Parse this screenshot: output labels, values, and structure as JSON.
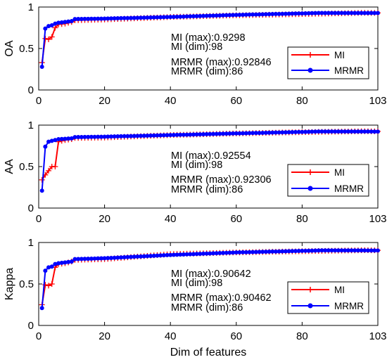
{
  "figure": {
    "xlabel": "Dim of features"
  },
  "chart_data": [
    {
      "type": "line",
      "ylabel": "OA",
      "xlim": [
        0,
        103
      ],
      "ylim": [
        0,
        1
      ],
      "xticks": [
        "0",
        "20",
        "40",
        "60",
        "80",
        "103"
      ],
      "yticks": [
        "0",
        "0.5",
        "1"
      ],
      "legend_placement": "lower-right",
      "annotations": [
        "MI (max):0.9298",
        "MI (dim):98",
        "MRMR (max):0.92846",
        "MRMR (dim):86"
      ],
      "series": [
        {
          "name": "MI",
          "color": "#ff0000",
          "marker": "plus",
          "knots": [
            [
              1,
              0.33
            ],
            [
              2,
              0.62
            ],
            [
              3,
              0.61
            ],
            [
              4,
              0.64
            ],
            [
              5,
              0.75
            ],
            [
              6,
              0.79
            ],
            [
              8,
              0.8
            ],
            [
              10,
              0.82
            ],
            [
              11,
              0.84
            ],
            [
              20,
              0.85
            ],
            [
              40,
              0.88
            ],
            [
              60,
              0.9
            ],
            [
              80,
              0.915
            ],
            [
              98,
              0.9298
            ],
            [
              103,
              0.929
            ]
          ]
        },
        {
          "name": "MRMR",
          "color": "#0000ff",
          "marker": "circle",
          "knots": [
            [
              1,
              0.28
            ],
            [
              2,
              0.74
            ],
            [
              3,
              0.77
            ],
            [
              4,
              0.78
            ],
            [
              5,
              0.8
            ],
            [
              6,
              0.81
            ],
            [
              10,
              0.83
            ],
            [
              11,
              0.855
            ],
            [
              20,
              0.86
            ],
            [
              40,
              0.88
            ],
            [
              60,
              0.905
            ],
            [
              86,
              0.92846
            ],
            [
              103,
              0.928
            ]
          ]
        }
      ]
    },
    {
      "type": "line",
      "ylabel": "AA",
      "xlim": [
        0,
        103
      ],
      "ylim": [
        0,
        1
      ],
      "xticks": [
        "0",
        "20",
        "40",
        "60",
        "80",
        "103"
      ],
      "yticks": [
        "0",
        "0.5",
        "1"
      ],
      "legend_placement": "lower-right",
      "annotations": [
        "MI (max):0.92554",
        "MI (dim):98",
        "MRMR (max):0.92306",
        "MRMR (dim):86"
      ],
      "series": [
        {
          "name": "MI",
          "color": "#ff0000",
          "marker": "plus",
          "knots": [
            [
              1,
              0.34
            ],
            [
              2,
              0.4
            ],
            [
              3,
              0.45
            ],
            [
              4,
              0.5
            ],
            [
              5,
              0.5
            ],
            [
              6,
              0.8
            ],
            [
              8,
              0.82
            ],
            [
              10,
              0.83
            ],
            [
              11,
              0.845
            ],
            [
              20,
              0.85
            ],
            [
              40,
              0.88
            ],
            [
              60,
              0.9
            ],
            [
              80,
              0.915
            ],
            [
              98,
              0.92554
            ],
            [
              103,
              0.925
            ]
          ]
        },
        {
          "name": "MRMR",
          "color": "#0000ff",
          "marker": "circle",
          "knots": [
            [
              1,
              0.21
            ],
            [
              2,
              0.74
            ],
            [
              3,
              0.8
            ],
            [
              4,
              0.81
            ],
            [
              5,
              0.82
            ],
            [
              6,
              0.83
            ],
            [
              10,
              0.84
            ],
            [
              11,
              0.855
            ],
            [
              20,
              0.86
            ],
            [
              40,
              0.88
            ],
            [
              60,
              0.9
            ],
            [
              86,
              0.92306
            ],
            [
              103,
              0.922
            ]
          ]
        }
      ]
    },
    {
      "type": "line",
      "ylabel": "Kappa",
      "xlim": [
        0,
        103
      ],
      "ylim": [
        0,
        1
      ],
      "xticks": [
        "0",
        "20",
        "40",
        "60",
        "80",
        "103"
      ],
      "yticks": [
        "0",
        "0.5",
        "1"
      ],
      "legend_placement": "lower-right",
      "annotations": [
        "MI (max):0.90642",
        "MI (dim):98",
        "MRMR (max):0.90462",
        "MRMR (dim):86"
      ],
      "series": [
        {
          "name": "MI",
          "color": "#ff0000",
          "marker": "plus",
          "knots": [
            [
              1,
              0.25
            ],
            [
              2,
              0.49
            ],
            [
              3,
              0.48
            ],
            [
              4,
              0.5
            ],
            [
              5,
              0.7
            ],
            [
              6,
              0.74
            ],
            [
              8,
              0.75
            ],
            [
              10,
              0.77
            ],
            [
              11,
              0.79
            ],
            [
              20,
              0.8
            ],
            [
              40,
              0.86
            ],
            [
              60,
              0.88
            ],
            [
              80,
              0.895
            ],
            [
              98,
              0.90642
            ],
            [
              103,
              0.906
            ]
          ]
        },
        {
          "name": "MRMR",
          "color": "#0000ff",
          "marker": "circle",
          "knots": [
            [
              1,
              0.21
            ],
            [
              2,
              0.66
            ],
            [
              3,
              0.7
            ],
            [
              4,
              0.71
            ],
            [
              5,
              0.74
            ],
            [
              6,
              0.75
            ],
            [
              10,
              0.77
            ],
            [
              11,
              0.8
            ],
            [
              20,
              0.81
            ],
            [
              40,
              0.85
            ],
            [
              60,
              0.88
            ],
            [
              86,
              0.90462
            ],
            [
              103,
              0.904
            ]
          ]
        }
      ]
    }
  ]
}
